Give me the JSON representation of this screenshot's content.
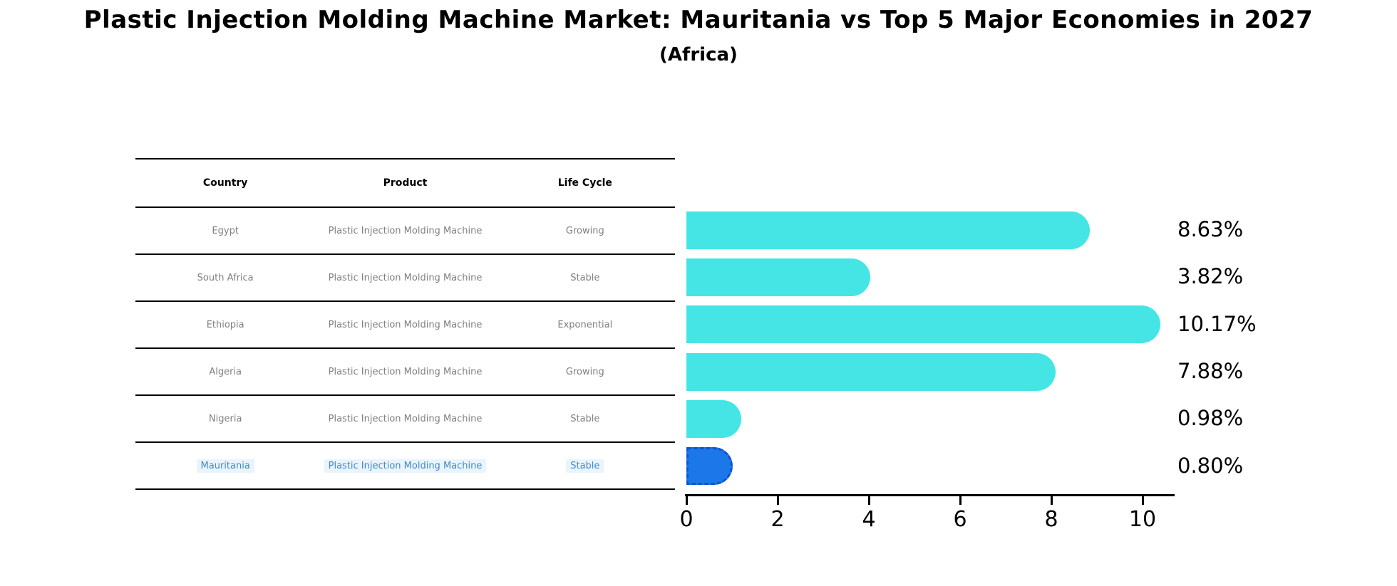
{
  "title": "Plastic Injection Molding Machine Market: Mauritania vs Top 5 Major Economies in 2027",
  "subtitle": "(Africa)",
  "table": {
    "headers": [
      "Country",
      "Product",
      "Life Cycle"
    ],
    "rows": [
      {
        "country": "Egypt",
        "product": "Plastic Injection Molding Machine",
        "life_cycle": "Growing",
        "highlight": false
      },
      {
        "country": "South Africa",
        "product": "Plastic Injection Molding Machine",
        "life_cycle": "Stable",
        "highlight": false
      },
      {
        "country": "Ethiopia",
        "product": "Plastic Injection Molding Machine",
        "life_cycle": "Exponential",
        "highlight": false
      },
      {
        "country": "Algeria",
        "product": "Plastic Injection Molding Machine",
        "life_cycle": "Growing",
        "highlight": false
      },
      {
        "country": "Nigeria",
        "product": "Plastic Injection Molding Machine",
        "life_cycle": "Stable",
        "highlight": false
      },
      {
        "country": "Mauritania",
        "product": "Plastic Injection Molding Machine",
        "life_cycle": "Stable",
        "highlight": true
      }
    ]
  },
  "chart_data": {
    "type": "bar",
    "orientation": "horizontal",
    "title": "Plastic Injection Molding Machine Market: Mauritania vs Top 5 Major Economies in 2027 (Africa)",
    "categories": [
      "Egypt",
      "South Africa",
      "Ethiopia",
      "Algeria",
      "Nigeria",
      "Mauritania"
    ],
    "values": [
      8.63,
      3.82,
      10.17,
      7.88,
      0.98,
      0.8
    ],
    "value_labels": [
      "8.63%",
      "3.82%",
      "10.17%",
      "7.88%",
      "0.98%",
      "0.80%"
    ],
    "xticks": [
      0,
      2,
      4,
      6,
      8,
      10
    ],
    "xlim": [
      0,
      10.7
    ],
    "xlabel": "",
    "ylabel": "",
    "grid": false,
    "legend": false,
    "bar_color": "#45e5e5",
    "highlight_index": 5,
    "highlight_color": "#1c78e8",
    "highlight_border_color": "#0c55d0",
    "highlight_text_color": "#3f8ac9"
  }
}
